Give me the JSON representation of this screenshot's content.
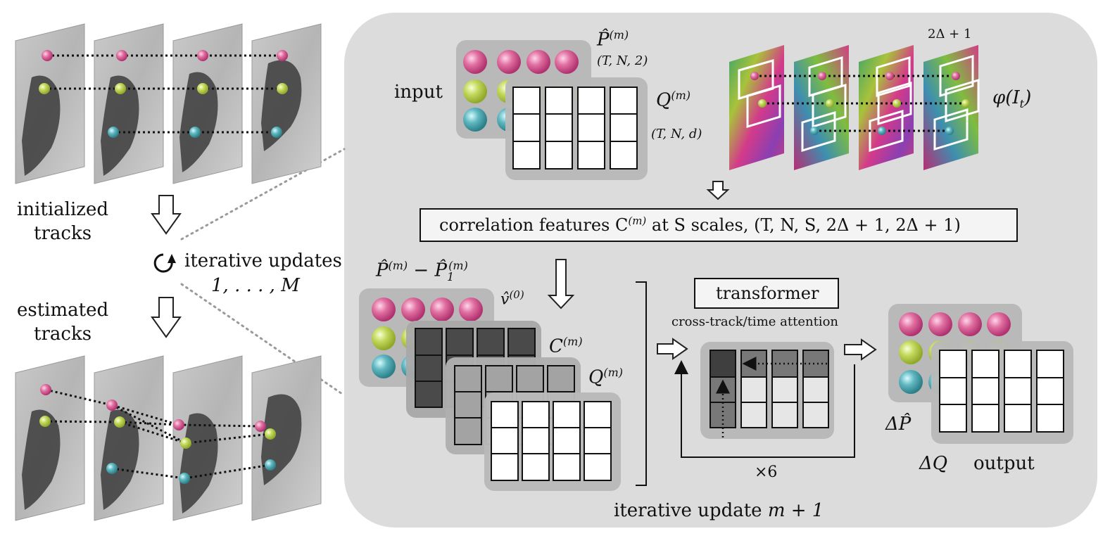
{
  "labels": {
    "initialized": "initialized",
    "initialized_2": "tracks",
    "iter_updates": "iterative updates",
    "iter_range": "1, . . . , M",
    "estimated": "estimated",
    "estimated_2": "tracks",
    "input": "input",
    "p_hat": "P̂",
    "p_hat_sup": "(m)",
    "p_shape": "(T, N, 2)",
    "q": "Q",
    "q_sup": "(m)",
    "q_shape": "(T, N, d)",
    "window": "2Δ + 1",
    "phi": "φ(I",
    "phi_sub": "t",
    "phi_close": ")",
    "correlation": "correlation features C",
    "correlation_sup": "(m)",
    "correlation_rest": " at S scales, (T, N, S, 2Δ + 1, 2Δ + 1)",
    "p_diff": "P̂",
    "p_diff_sup": "(m)",
    "p_diff_minus": " − P̂",
    "p_diff_sub": "1",
    "p_diff_sup2": "(m)",
    "v0": "v̂",
    "v0_sup": "(0)",
    "c_label": "C",
    "c_sup": "(m)",
    "q2_label": "Q",
    "q2_sup": "(m)",
    "transformer": "transformer",
    "attention": "cross-track/time attention",
    "times6": "×6",
    "delta_p": "ΔP̂",
    "delta_q": "ΔQ",
    "output": "output",
    "iter_update": "iterative update ",
    "iter_update_m": "m + 1"
  },
  "colors": {
    "panel": "#dcdcdc",
    "card": "#b9b9b9",
    "pink": "#d9508c",
    "green": "#b6cd4a",
    "teal": "#46a2ac",
    "dark_cell": "#4a4a4a",
    "mid_cell": "#a3a3a3",
    "white_cell": "#ffffff"
  },
  "icons": [
    "loop-arrow-icon",
    "down-arrow-icon",
    "right-arrow-icon",
    "bracket-icon"
  ]
}
